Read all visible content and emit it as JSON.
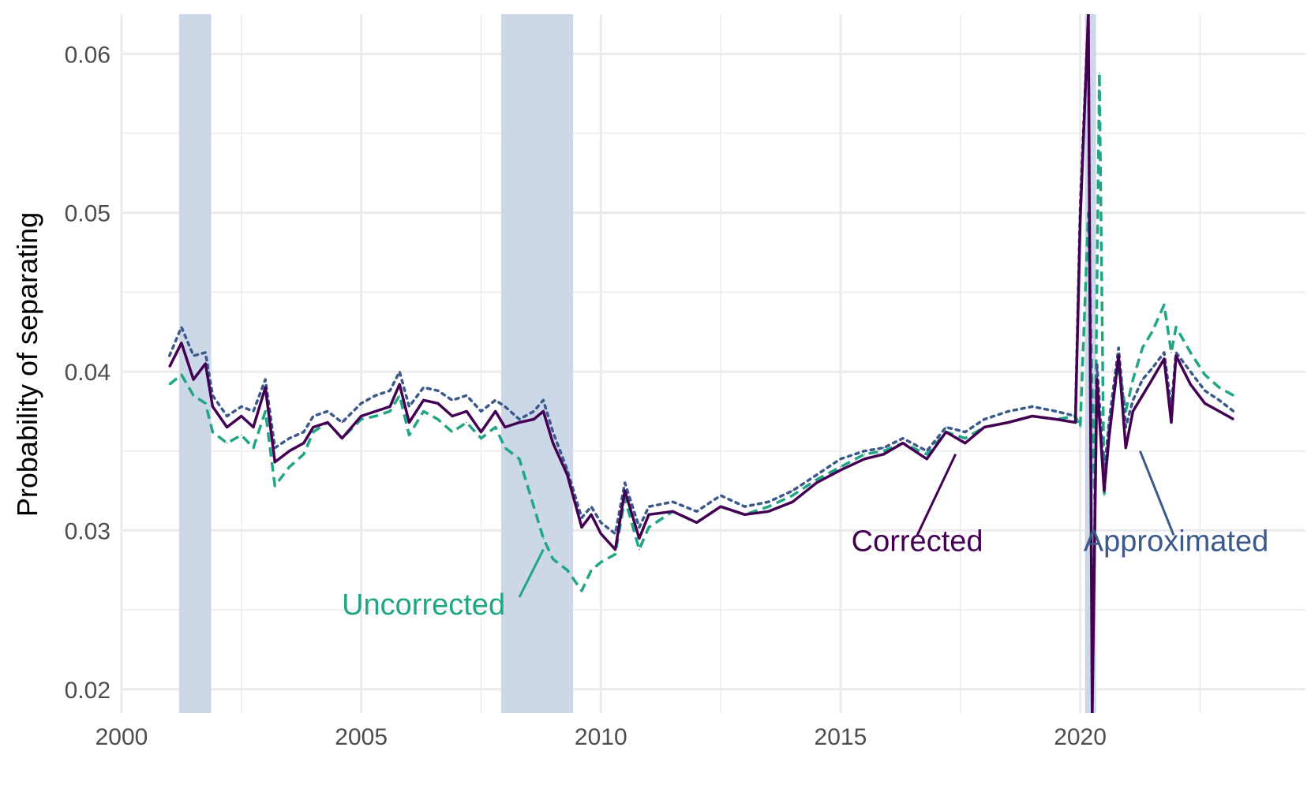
{
  "chart_data": {
    "type": "line",
    "title": "",
    "xlabel": "",
    "ylabel": "Probability of separating",
    "xlim": [
      2000,
      2024.7
    ],
    "ylim": [
      0.0185,
      0.0625
    ],
    "x_ticks": [
      2000,
      2005,
      2010,
      2015,
      2020
    ],
    "x_tick_labels": [
      "2000",
      "2005",
      "2010",
      "2015",
      "2020"
    ],
    "y_ticks": [
      0.02,
      0.03,
      0.04,
      0.05,
      0.06
    ],
    "y_tick_labels": [
      "0.02",
      "0.03",
      "0.04",
      "0.05",
      "0.06"
    ],
    "grid": true,
    "recessions": [
      [
        2001.2,
        2001.87
      ],
      [
        2007.92,
        2009.42
      ],
      [
        2020.1,
        2020.33
      ]
    ],
    "recession_color": "#ccd7e8",
    "series": [
      {
        "name": "Corrected",
        "color": "#440154",
        "dash": "solid",
        "x": [
          2001.0,
          2001.25,
          2001.5,
          2001.75,
          2001.9,
          2002.2,
          2002.5,
          2002.75,
          2003.0,
          2003.2,
          2003.5,
          2003.8,
          2004.0,
          2004.3,
          2004.6,
          2005.0,
          2005.3,
          2005.6,
          2005.8,
          2006.0,
          2006.3,
          2006.6,
          2006.9,
          2007.2,
          2007.5,
          2007.8,
          2008.0,
          2008.3,
          2008.6,
          2008.8,
          2009.0,
          2009.3,
          2009.6,
          2009.8,
          2010.0,
          2010.3,
          2010.5,
          2010.8,
          2011.0,
          2011.5,
          2012.0,
          2012.5,
          2013.0,
          2013.5,
          2014.0,
          2014.5,
          2015.0,
          2015.5,
          2015.9,
          2016.3,
          2016.8,
          2017.2,
          2017.6,
          2018.0,
          2018.5,
          2019.0,
          2019.5,
          2019.9,
          2020.0,
          2020.17,
          2020.25,
          2020.35,
          2020.5,
          2020.6,
          2020.8,
          2020.95,
          2021.1,
          2021.3,
          2021.5,
          2021.75,
          2021.9,
          2022.0,
          2022.3,
          2022.6,
          2022.9,
          2023.2
        ],
        "y": [
          0.0403,
          0.0418,
          0.0395,
          0.0405,
          0.0378,
          0.0365,
          0.0372,
          0.0365,
          0.039,
          0.0343,
          0.035,
          0.0355,
          0.0365,
          0.0368,
          0.0358,
          0.0372,
          0.0375,
          0.0378,
          0.0392,
          0.0368,
          0.0382,
          0.038,
          0.0372,
          0.0375,
          0.0362,
          0.0375,
          0.0365,
          0.0368,
          0.037,
          0.0375,
          0.0355,
          0.0335,
          0.0302,
          0.031,
          0.0298,
          0.0288,
          0.0325,
          0.0295,
          0.031,
          0.0312,
          0.0305,
          0.0315,
          0.031,
          0.0312,
          0.0318,
          0.033,
          0.0338,
          0.0345,
          0.0348,
          0.0355,
          0.0345,
          0.0362,
          0.0355,
          0.0365,
          0.0368,
          0.0372,
          0.037,
          0.0368,
          0.0495,
          0.0625,
          0.0185,
          0.0395,
          0.0325,
          0.0358,
          0.041,
          0.0352,
          0.0375,
          0.0385,
          0.0395,
          0.0408,
          0.0368,
          0.041,
          0.0392,
          0.038,
          0.0375,
          0.037
        ]
      },
      {
        "name": "Approximated",
        "color": "#3b5a8a",
        "dash": "dotted",
        "x": [
          2001.0,
          2001.25,
          2001.5,
          2001.75,
          2001.9,
          2002.2,
          2002.5,
          2002.75,
          2003.0,
          2003.2,
          2003.5,
          2003.8,
          2004.0,
          2004.3,
          2004.6,
          2005.0,
          2005.3,
          2005.6,
          2005.8,
          2006.0,
          2006.3,
          2006.6,
          2006.9,
          2007.2,
          2007.5,
          2007.8,
          2008.0,
          2008.3,
          2008.6,
          2008.8,
          2009.0,
          2009.3,
          2009.6,
          2009.8,
          2010.0,
          2010.3,
          2010.5,
          2010.8,
          2011.0,
          2011.5,
          2012.0,
          2012.5,
          2013.0,
          2013.5,
          2014.0,
          2014.5,
          2015.0,
          2015.5,
          2015.9,
          2016.3,
          2016.8,
          2017.2,
          2017.6,
          2018.0,
          2018.5,
          2019.0,
          2019.5,
          2019.9,
          2020.0,
          2020.17,
          2020.25,
          2020.35,
          2020.5,
          2020.6,
          2020.8,
          2020.95,
          2021.1,
          2021.3,
          2021.5,
          2021.75,
          2021.9,
          2022.0,
          2022.3,
          2022.6,
          2022.9,
          2023.2
        ],
        "y": [
          0.041,
          0.0428,
          0.041,
          0.0412,
          0.0385,
          0.0372,
          0.0378,
          0.0375,
          0.0395,
          0.0352,
          0.0358,
          0.0362,
          0.0372,
          0.0375,
          0.0368,
          0.038,
          0.0385,
          0.0388,
          0.04,
          0.0378,
          0.039,
          0.0388,
          0.0382,
          0.0385,
          0.0375,
          0.0382,
          0.0378,
          0.037,
          0.0375,
          0.0382,
          0.0362,
          0.0338,
          0.0308,
          0.0315,
          0.0305,
          0.0298,
          0.033,
          0.0302,
          0.0315,
          0.0318,
          0.0312,
          0.0322,
          0.0315,
          0.0318,
          0.0325,
          0.0335,
          0.0345,
          0.035,
          0.0352,
          0.0358,
          0.035,
          0.0365,
          0.0362,
          0.037,
          0.0375,
          0.0378,
          0.0375,
          0.0372,
          0.0505,
          0.0625,
          0.0185,
          0.0405,
          0.0335,
          0.0368,
          0.0415,
          0.0365,
          0.0382,
          0.0395,
          0.0402,
          0.0412,
          0.0378,
          0.0412,
          0.04,
          0.0388,
          0.0382,
          0.0375
        ]
      },
      {
        "name": "Uncorrected",
        "color": "#21a685",
        "dash": "dashed",
        "x": [
          2001.0,
          2001.25,
          2001.5,
          2001.75,
          2001.9,
          2002.2,
          2002.5,
          2002.75,
          2003.0,
          2003.2,
          2003.5,
          2003.8,
          2004.0,
          2004.3,
          2004.6,
          2005.0,
          2005.3,
          2005.6,
          2005.8,
          2006.0,
          2006.3,
          2006.6,
          2006.9,
          2007.2,
          2007.5,
          2007.8,
          2008.0,
          2008.3,
          2008.6,
          2008.8,
          2009.0,
          2009.3,
          2009.6,
          2009.8,
          2010.0,
          2010.3,
          2010.5,
          2010.8,
          2011.0,
          2011.5,
          2012.0,
          2012.5,
          2013.0,
          2013.5,
          2014.0,
          2014.5,
          2015.0,
          2015.5,
          2015.9,
          2016.3,
          2016.8,
          2017.2,
          2017.6,
          2018.0,
          2018.5,
          2019.0,
          2019.5,
          2019.9,
          2020.0,
          2020.17,
          2020.3,
          2020.4,
          2020.5,
          2020.6,
          2020.8,
          2020.95,
          2021.1,
          2021.3,
          2021.5,
          2021.75,
          2021.9,
          2022.0,
          2022.3,
          2022.6,
          2022.9,
          2023.2
        ],
        "y": [
          0.0392,
          0.0398,
          0.0385,
          0.038,
          0.0362,
          0.0355,
          0.036,
          0.0352,
          0.0375,
          0.0328,
          0.034,
          0.0348,
          0.0362,
          0.0368,
          0.0358,
          0.037,
          0.0372,
          0.0375,
          0.0385,
          0.036,
          0.0375,
          0.037,
          0.0362,
          0.0368,
          0.0358,
          0.0365,
          0.0352,
          0.0345,
          0.0315,
          0.0295,
          0.0282,
          0.0275,
          0.0262,
          0.0275,
          0.028,
          0.0285,
          0.032,
          0.0288,
          0.0302,
          0.0312,
          0.0305,
          0.0315,
          0.031,
          0.0315,
          0.0322,
          0.0332,
          0.034,
          0.0348,
          0.035,
          0.0355,
          0.0348,
          0.0362,
          0.0358,
          0.0365,
          0.0368,
          0.0372,
          0.037,
          0.0372,
          0.0365,
          0.05,
          0.032,
          0.0588,
          0.0322,
          0.0365,
          0.0405,
          0.0375,
          0.0395,
          0.0415,
          0.0425,
          0.0442,
          0.0412,
          0.0428,
          0.0412,
          0.0398,
          0.039,
          0.0385
        ]
      }
    ],
    "annotations": [
      {
        "text": "Corrected",
        "series": 0,
        "text_x": 2016.6,
        "text_y": 0.0287,
        "line": [
          [
            2016.6,
            0.0297
          ],
          [
            2017.4,
            0.0348
          ]
        ]
      },
      {
        "text": "Approximated",
        "series": 1,
        "text_x": 2022.0,
        "text_y": 0.0287,
        "line": [
          [
            2021.95,
            0.0297
          ],
          [
            2021.25,
            0.035
          ]
        ]
      },
      {
        "text": "Uncorrected",
        "series": 2,
        "text_x": 2006.3,
        "text_y": 0.0247,
        "line": [
          [
            2008.3,
            0.0258
          ],
          [
            2008.8,
            0.0288
          ]
        ]
      }
    ]
  }
}
